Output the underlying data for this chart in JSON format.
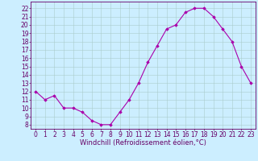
{
  "x": [
    0,
    1,
    2,
    3,
    4,
    5,
    6,
    7,
    8,
    9,
    10,
    11,
    12,
    13,
    14,
    15,
    16,
    17,
    18,
    19,
    20,
    21,
    22,
    23
  ],
  "y": [
    12,
    11,
    11.5,
    10,
    10,
    9.5,
    8.5,
    8,
    8,
    9.5,
    11,
    13,
    15.5,
    17.5,
    19.5,
    20,
    21.5,
    22,
    22,
    21,
    19.5,
    18,
    15,
    13
  ],
  "line_color": "#aa00aa",
  "marker": "D",
  "marker_size": 1.8,
  "bg_color": "#cceeff",
  "grid_color": "#aacccc",
  "xlabel": "Windchill (Refroidissement éolien,°C)",
  "xlabel_fontsize": 6.0,
  "ylabel_ticks": [
    8,
    9,
    10,
    11,
    12,
    13,
    14,
    15,
    16,
    17,
    18,
    19,
    20,
    21,
    22
  ],
  "xlim": [
    -0.5,
    23.5
  ],
  "ylim": [
    7.5,
    22.8
  ],
  "tick_fontsize": 5.5,
  "line_color_hex": "#aa00aa",
  "tick_color": "#660066",
  "spine_color": "#660066",
  "xlabel_color": "#660066"
}
